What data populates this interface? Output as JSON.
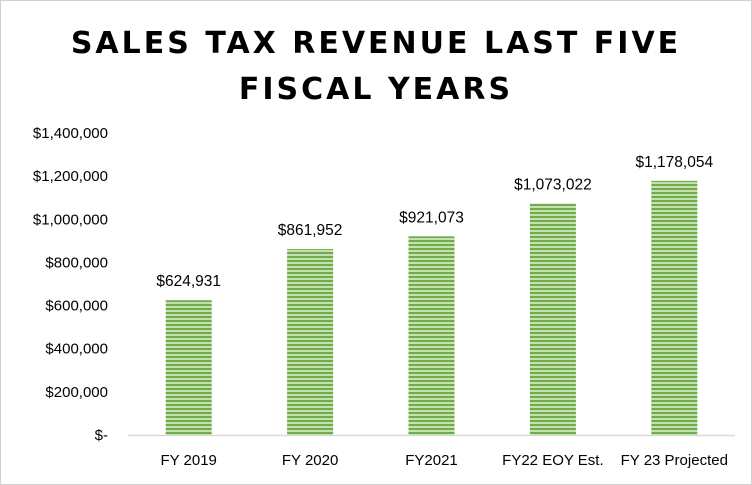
{
  "chart_data": {
    "type": "bar",
    "title_lines": [
      "SALES TAX REVENUE LAST FIVE",
      "FISCAL YEARS"
    ],
    "categories": [
      "FY 2019",
      "FY 2020",
      "FY2021",
      "FY22 EOY Est.",
      "FY 23 Projected"
    ],
    "values": [
      624931,
      861952,
      921073,
      1073022,
      1178054
    ],
    "data_labels": [
      "$624,931",
      "$861,952",
      "$921,073",
      "$1,073,022",
      "$1,178,054"
    ],
    "ylim": [
      0,
      1400000
    ],
    "yticks": [
      0,
      200000,
      400000,
      600000,
      800000,
      1000000,
      1200000,
      1400000
    ],
    "ytick_labels": [
      "$-",
      "$200,000",
      "$400,000",
      "$600,000",
      "$800,000",
      "$1,000,000",
      "$1,200,000",
      "$1,400,000"
    ],
    "xlabel": "",
    "ylabel": "",
    "gridlines": false,
    "legend": "none",
    "bar_fill": "horizontal green stripes",
    "colors": {
      "bar_light": "#c5e0b4",
      "bar_dark": "#70ad47",
      "axis": "#d9d9d9"
    }
  }
}
